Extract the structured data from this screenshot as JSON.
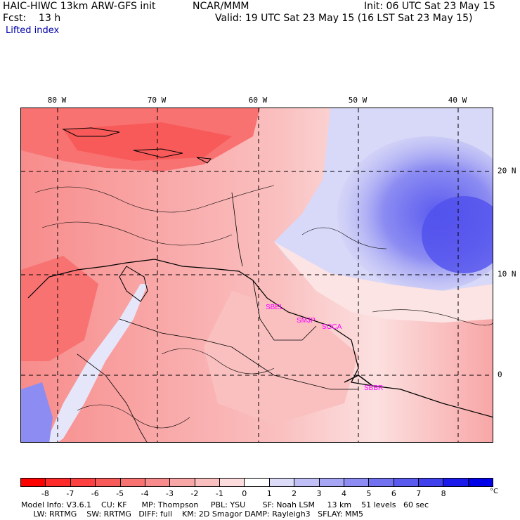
{
  "header": {
    "model_title": "HAIC-HIWC 13km ARW-GFS init",
    "org": "NCAR/MMM",
    "init": "Init: 06 UTC Sat 23 May 15",
    "fcst": "Fcst:    13 h",
    "valid": "Valid: 19 UTC Sat 23 May 15 (16 LST Sat 23 May 15)",
    "field": "Lifted index"
  },
  "map": {
    "lon_labels": [
      "80 W",
      "70 W",
      "60 W",
      "50 W",
      "40 W"
    ],
    "lat_labels": [
      "20 N",
      "10 N",
      "0"
    ],
    "stations": [
      "SBEL",
      "SMJP",
      "SOCA",
      "SBBR"
    ]
  },
  "colorbar": {
    "labels": [
      "-8",
      "-7",
      "-6",
      "-5",
      "-4",
      "-3",
      "-2",
      "-1",
      "0",
      "1",
      "2",
      "3",
      "4",
      "5",
      "6",
      "7",
      "8"
    ],
    "unit": "°C",
    "colors": [
      "#ff0000",
      "#ff2a2a",
      "#ff4040",
      "#f85a5a",
      "#f87272",
      "#f88c8c",
      "#f8a6a6",
      "#fac0c0",
      "#fcdcdc",
      "#ffffff",
      "#dcdcf8",
      "#c0c0f6",
      "#a6a6f4",
      "#8c8cf2",
      "#7272f0",
      "#5a5aee",
      "#4040ec",
      "#1a1aea",
      "#0000e8"
    ]
  },
  "model_info": {
    "line1": "Model Info: V3.6.1    CU: KF      MP: Thompson     PBL: YSU       SF: Noah LSM     13 km    51 levels   60 sec",
    "line2": "     LW: RRTMG    SW: RRTMG   DIFF: full    KM: 2D Smagor DAMP: Rayleigh3   SFLAY: MM5"
  }
}
